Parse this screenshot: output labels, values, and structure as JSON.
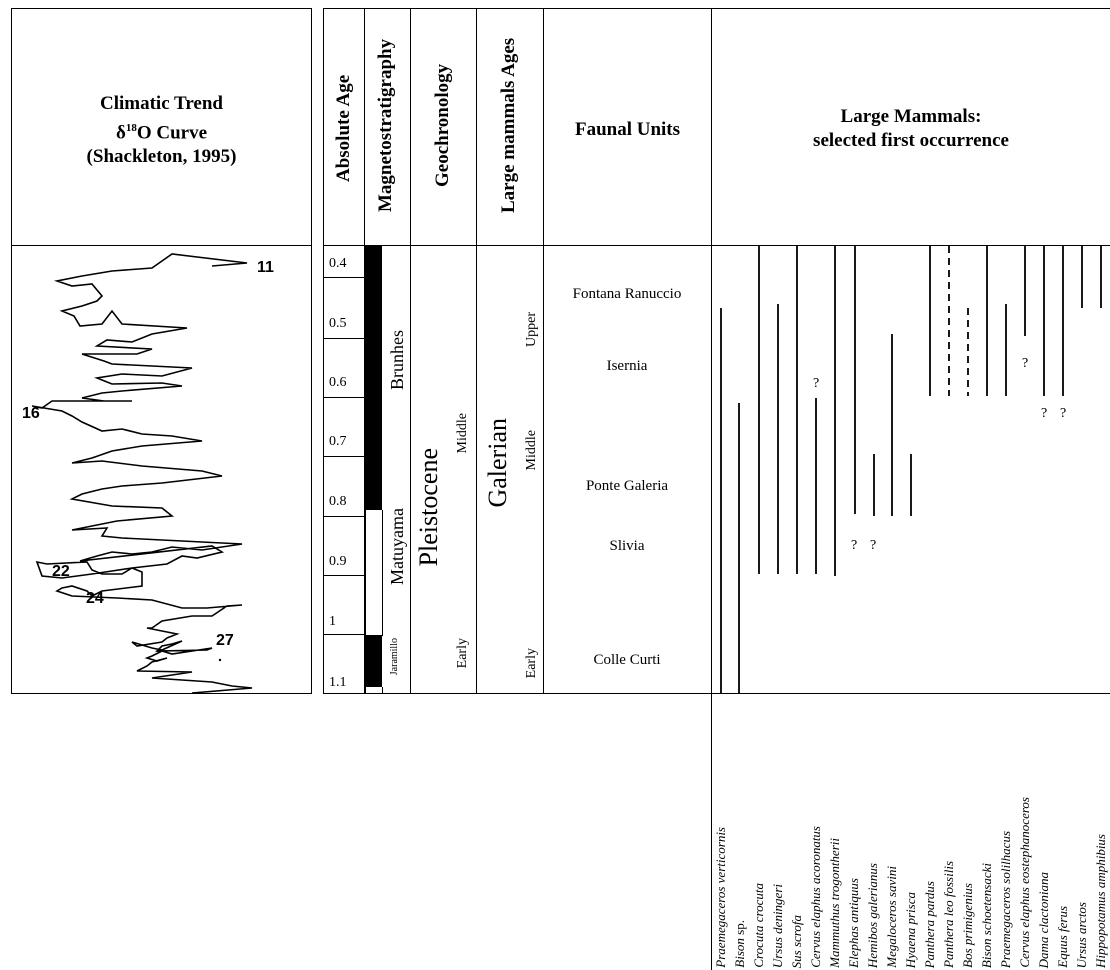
{
  "climate": {
    "title": "Climatic Trend",
    "curve_prefix": "δ",
    "curve_sup": "18",
    "curve_suffix": "O Curve",
    "source": "(Shackleton, 1995)",
    "stage_labels": [
      "11",
      "16",
      "22",
      "24",
      "27"
    ]
  },
  "headers": {
    "absolute_age": "Absolute Age",
    "magnetostratigraphy": "Magnetostratigraphy",
    "geochronology": "Geochronology",
    "large_mammal_ages": "Large mammals Ages",
    "faunal_units": "Faunal Units",
    "large_mammals_line1": "Large Mammals:",
    "large_mammals_line2": "selected first occurrence"
  },
  "ages": [
    "0.4",
    "0.5",
    "0.6",
    "0.7",
    "0.8",
    "0.9",
    "1",
    "1.1"
  ],
  "magneto": {
    "brunhes": "Brunhes",
    "matuyama": "Matuyama",
    "jaramillo": "Jaramillo"
  },
  "geochron": {
    "epoch": "Pleistocene",
    "middle": "Middle",
    "early": "Early"
  },
  "lma": {
    "age": "Galerian",
    "upper": "Upper",
    "middle": "Middle",
    "early": "Early"
  },
  "faunal_units": [
    "Fontana Ranuccio",
    "Isernia",
    "Ponte Galeria",
    "Slivia",
    "Colle Curti"
  ],
  "question_mark": "?",
  "species": [
    {
      "name": "Praemegaceros verticornis",
      "genus_only": false
    },
    {
      "name": "Bison",
      "suffix": "sp.",
      "genus_only": true
    },
    {
      "name": "Crocuta crocuta",
      "genus_only": false
    },
    {
      "name": "Ursus deningeri",
      "genus_only": false
    },
    {
      "name": "Sus scrofa",
      "genus_only": false
    },
    {
      "name": "Cervus elaphus acoronatus",
      "genus_only": false
    },
    {
      "name": "Mammuthus trogontherii",
      "genus_only": false
    },
    {
      "name": "Elephas antiquus",
      "genus_only": false
    },
    {
      "name": "Hemibos galerianus",
      "genus_only": false
    },
    {
      "name": "Megaloceros savini",
      "genus_only": false
    },
    {
      "name": "Hyaena prisca",
      "genus_only": false
    },
    {
      "name": "Panthera pardus",
      "genus_only": false
    },
    {
      "name": "Panthera leo fossilis",
      "genus_only": false
    },
    {
      "name": "Bos primigenius",
      "genus_only": false
    },
    {
      "name": "Bison schoetensacki",
      "genus_only": false
    },
    {
      "name": "Praemegaceros solilhacus",
      "genus_only": false
    },
    {
      "name": "Cervus elaphus eostephanoceros",
      "genus_only": false
    },
    {
      "name": "Dama clactoniana",
      "genus_only": false
    },
    {
      "name": "Equus ferus",
      "genus_only": false
    },
    {
      "name": "Ursus arctos",
      "genus_only": false
    },
    {
      "name": "Hippopotamus amphibius",
      "genus_only": false
    }
  ]
}
